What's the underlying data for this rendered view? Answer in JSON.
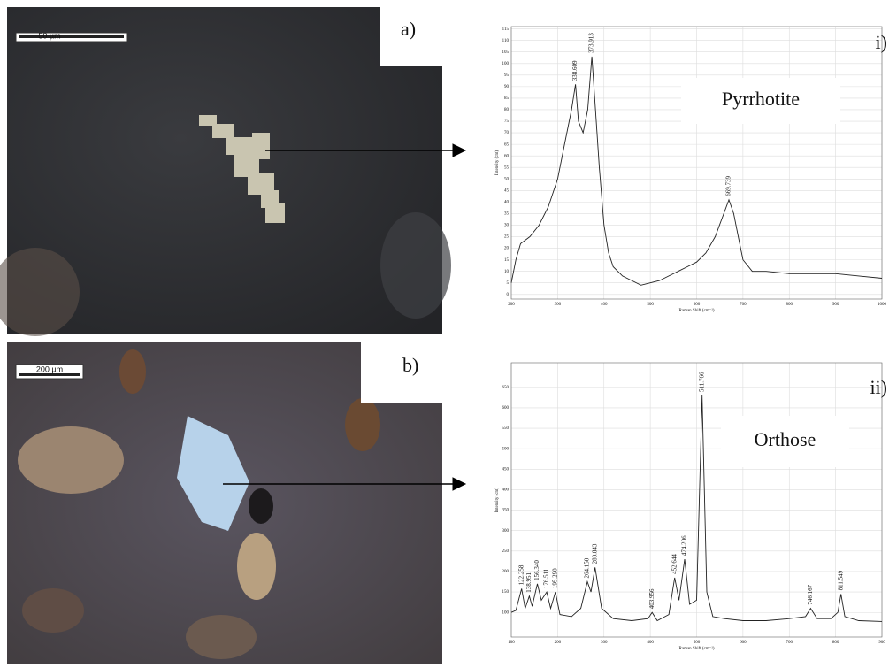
{
  "panels": [
    {
      "label": "a)",
      "scale_bar": "50 µm"
    },
    {
      "label": "b)",
      "scale_bar": "200 µm"
    }
  ],
  "chart_data": [
    {
      "type": "line",
      "panel_label": "i)",
      "mineral": "Pyrrhotite",
      "xlabel": "Raman Shift (cm⁻¹)",
      "ylabel": "Intensity (cnt)",
      "color": "#222222",
      "grid": true,
      "xlim": [
        200,
        1000
      ],
      "ylim": [
        -2,
        116
      ],
      "xticks": [
        200,
        300,
        400,
        500,
        600,
        700,
        800,
        900,
        1000
      ],
      "yticks": [
        0,
        5,
        10,
        15,
        20,
        25,
        30,
        35,
        40,
        45,
        50,
        55,
        60,
        65,
        70,
        75,
        80,
        85,
        90,
        95,
        100,
        105,
        110,
        115
      ],
      "x": [
        200,
        210,
        220,
        240,
        260,
        280,
        300,
        315,
        330,
        338.609,
        345,
        355,
        365,
        373.913,
        380,
        390,
        400,
        410,
        420,
        440,
        460,
        480,
        500,
        520,
        540,
        560,
        580,
        600,
        620,
        640,
        655,
        669.739,
        680,
        690,
        700,
        720,
        750,
        800,
        850,
        900,
        950,
        1000
      ],
      "values": [
        5,
        15,
        22,
        25,
        30,
        38,
        50,
        65,
        80,
        91,
        75,
        70,
        80,
        103,
        85,
        55,
        30,
        18,
        12,
        8,
        6,
        4,
        5,
        6,
        8,
        10,
        12,
        14,
        18,
        25,
        33,
        41,
        35,
        25,
        15,
        10,
        10,
        9,
        9,
        9,
        8,
        7
      ],
      "peak_labels": [
        {
          "value": 338.609,
          "label": "338.609"
        },
        {
          "value": 373.913,
          "label": "373.913"
        },
        {
          "value": 669.739,
          "label": "669.739"
        }
      ]
    },
    {
      "type": "line",
      "panel_label": "ii)",
      "mineral": "Orthose",
      "xlabel": "Raman Shift (cm⁻¹)",
      "ylabel": "Intensity (cnt)",
      "color": "#222222",
      "grid": true,
      "xlim": [
        100,
        900
      ],
      "ylim": [
        40,
        710
      ],
      "xticks": [
        100,
        200,
        300,
        400,
        500,
        600,
        700,
        800,
        900
      ],
      "yticks": [
        100,
        150,
        200,
        250,
        300,
        350,
        400,
        450,
        500,
        550,
        600,
        650
      ],
      "x": [
        100,
        110,
        122.258,
        130,
        138.951,
        145,
        156.34,
        165,
        176.511,
        185,
        195.29,
        205,
        230,
        250,
        264.15,
        272,
        280.843,
        295,
        320,
        360,
        395,
        403.956,
        415,
        440,
        452.644,
        462,
        474.206,
        485,
        500,
        511.766,
        522,
        535,
        560,
        600,
        650,
        700,
        735,
        746.167,
        760,
        790,
        805,
        811.549,
        820,
        850,
        900
      ],
      "values": [
        100,
        105,
        158,
        110,
        140,
        115,
        170,
        130,
        150,
        110,
        150,
        95,
        90,
        110,
        175,
        150,
        210,
        110,
        85,
        80,
        85,
        100,
        80,
        95,
        185,
        130,
        230,
        120,
        130,
        630,
        150,
        90,
        85,
        80,
        80,
        85,
        90,
        110,
        85,
        85,
        100,
        145,
        90,
        80,
        78
      ],
      "peak_labels": [
        {
          "value": 122.258,
          "label": "122.258"
        },
        {
          "value": 138.951,
          "label": "138.951"
        },
        {
          "value": 156.34,
          "label": "156.340"
        },
        {
          "value": 176.511,
          "label": "176.511"
        },
        {
          "value": 195.29,
          "label": "195.290"
        },
        {
          "value": 264.15,
          "label": "264.150"
        },
        {
          "value": 280.843,
          "label": "280.843"
        },
        {
          "value": 403.956,
          "label": "403.956"
        },
        {
          "value": 452.644,
          "label": "452.644"
        },
        {
          "value": 474.206,
          "label": "474.206"
        },
        {
          "value": 511.766,
          "label": "511.766"
        },
        {
          "value": 746.167,
          "label": "746.167"
        },
        {
          "value": 811.549,
          "label": "811.549"
        }
      ]
    }
  ]
}
